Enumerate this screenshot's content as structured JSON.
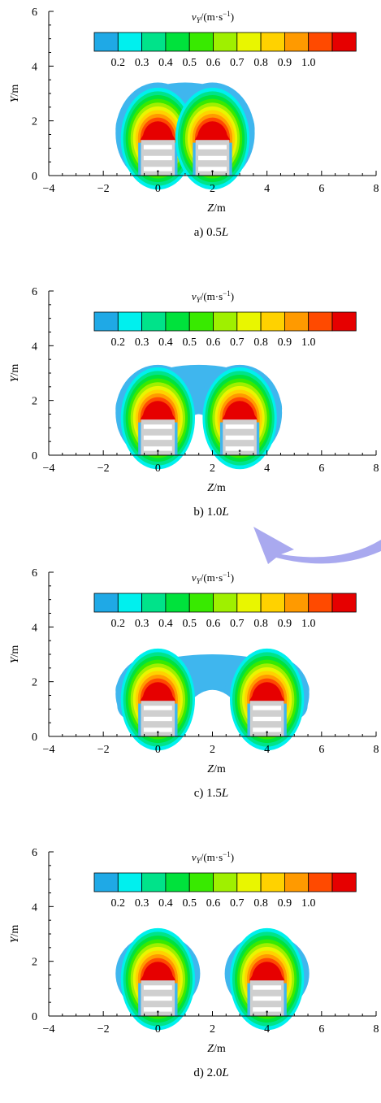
{
  "figure": {
    "colorbar": {
      "title_var": "v",
      "title_sub": "Y",
      "title_unit": "/(m·s",
      "title_exp": "−1",
      "title_close": ")",
      "tick_labels": [
        "0.2",
        "0.3",
        "0.4",
        "0.5",
        "0.6",
        "0.7",
        "0.8",
        "0.9",
        "1.0"
      ],
      "colors": [
        "#1fa9e6",
        "#00f0ee",
        "#00e38a",
        "#00e23c",
        "#38ea00",
        "#9ff000",
        "#e9f600",
        "#ffd200",
        "#ff9a00",
        "#ff4a00",
        "#e60000"
      ]
    },
    "colors": {
      "contour_outer": "#3fb6ee",
      "pallet_fill": "#cfcfcf",
      "pallet_stripe": "#ffffff",
      "watermark": "#a9a9ef"
    }
  },
  "chart_data": [
    {
      "type": "heatmap",
      "title": "",
      "caption_prefix": "a) 0.5",
      "caption_italic": "L",
      "xlabel_var": "Z",
      "xlabel_unit": "/m",
      "ylabel_var": "Y",
      "ylabel_unit": "/m",
      "xlim": [
        -4,
        8
      ],
      "ylim": [
        0,
        6
      ],
      "x_ticks": [
        "−4",
        "−2",
        "0",
        "2",
        "4",
        "6",
        "8"
      ],
      "y_ticks": [
        "0",
        "2",
        "4",
        "6"
      ],
      "sources_z": [
        0,
        2
      ],
      "plume_top_y": 3.4,
      "merged": true
    },
    {
      "type": "heatmap",
      "title": "",
      "caption_prefix": "b) 1.0",
      "caption_italic": "L",
      "xlabel_var": "Z",
      "xlabel_unit": "/m",
      "ylabel_var": "Y",
      "ylabel_unit": "/m",
      "xlim": [
        -4,
        8
      ],
      "ylim": [
        0,
        6
      ],
      "x_ticks": [
        "−4",
        "−2",
        "0",
        "2",
        "4",
        "6",
        "8"
      ],
      "y_ticks": [
        "0",
        "2",
        "4",
        "6"
      ],
      "sources_z": [
        0,
        3
      ],
      "plume_top_y": 3.3,
      "merged": true
    },
    {
      "type": "heatmap",
      "title": "",
      "caption_prefix": "c) 1.5",
      "caption_italic": "L",
      "xlabel_var": "Z",
      "xlabel_unit": "/m",
      "ylabel_var": "Y",
      "ylabel_unit": "/m",
      "xlim": [
        -4,
        8
      ],
      "ylim": [
        0,
        6
      ],
      "x_ticks": [
        "−4",
        "−2",
        "0",
        "2",
        "4",
        "6",
        "8"
      ],
      "y_ticks": [
        "0",
        "2",
        "4",
        "6"
      ],
      "sources_z": [
        0,
        4
      ],
      "plume_top_y": 3.0,
      "merged": true
    },
    {
      "type": "heatmap",
      "title": "",
      "caption_prefix": "d) 2.0",
      "caption_italic": "L",
      "xlabel_var": "Z",
      "xlabel_unit": "/m",
      "ylabel_var": "Y",
      "ylabel_unit": "/m",
      "xlim": [
        -4,
        8
      ],
      "ylim": [
        0,
        6
      ],
      "x_ticks": [
        "−4",
        "−2",
        "0",
        "2",
        "4",
        "6",
        "8"
      ],
      "y_ticks": [
        "0",
        "2",
        "4",
        "6"
      ],
      "sources_z": [
        0,
        4
      ],
      "plume_top_y": 3.0,
      "merged": false
    }
  ]
}
